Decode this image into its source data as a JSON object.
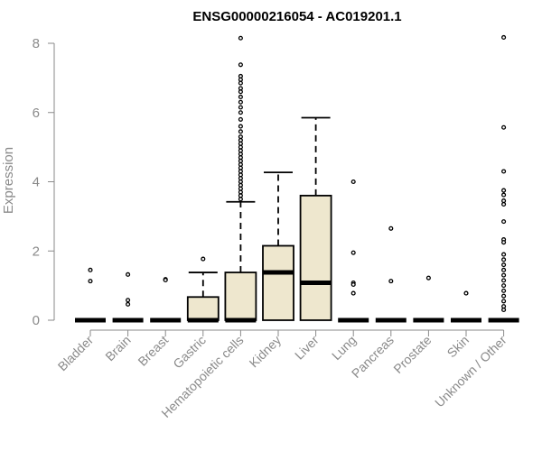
{
  "chart_data": {
    "type": "boxplot",
    "title": "ENSG00000216054 - AC019201.1",
    "xlabel": "",
    "ylabel": "Expression",
    "ylim": [
      0,
      8.2
    ],
    "yticks": [
      0,
      2,
      4,
      6,
      8
    ],
    "box_fill": "#EEE7CE",
    "categories": [
      "Bladder",
      "Brain",
      "Breast",
      "Gastric",
      "Hematopoietic cells",
      "Kidney",
      "Liver",
      "Lung",
      "Pancreas",
      "Prostate",
      "Skin",
      "Unknown / Other"
    ],
    "boxes": [
      {
        "category": "Bladder",
        "whisker_low": 0,
        "q1": 0,
        "median": 0,
        "q3": 0,
        "whisker_high": 0,
        "outliers": [
          1.45,
          1.13
        ]
      },
      {
        "category": "Brain",
        "whisker_low": 0,
        "q1": 0,
        "median": 0,
        "q3": 0,
        "whisker_high": 0,
        "outliers": [
          1.32,
          0.58,
          0.46
        ]
      },
      {
        "category": "Breast",
        "whisker_low": 0,
        "q1": 0,
        "median": 0,
        "q3": 0,
        "whisker_high": 0,
        "outliers": [
          1.18,
          1.16
        ]
      },
      {
        "category": "Gastric",
        "whisker_low": 0,
        "q1": 0,
        "median": 0,
        "q3": 0.67,
        "whisker_high": 1.38,
        "outliers": [
          1.77
        ]
      },
      {
        "category": "Hematopoietic cells",
        "whisker_low": 0,
        "q1": 0,
        "median": 0,
        "q3": 1.38,
        "whisker_high": 3.42,
        "outliers": [
          8.15,
          7.38,
          7.05,
          6.95,
          6.85,
          6.7,
          6.6,
          6.45,
          6.3,
          6.15,
          6.0,
          5.8,
          5.6,
          5.45,
          5.3,
          5.2,
          5.1,
          5.0,
          4.9,
          4.8,
          4.7,
          4.6,
          4.5,
          4.4,
          4.3,
          4.2,
          4.1,
          4.0,
          3.9,
          3.8,
          3.7,
          3.6,
          3.5
        ]
      },
      {
        "category": "Kidney",
        "whisker_low": 0,
        "q1": 0,
        "median": 1.38,
        "q3": 2.15,
        "whisker_high": 4.27,
        "outliers": []
      },
      {
        "category": "Liver",
        "whisker_low": 0,
        "q1": 0,
        "median": 1.08,
        "q3": 3.6,
        "whisker_high": 5.85,
        "outliers": []
      },
      {
        "category": "Lung",
        "whisker_low": 0,
        "q1": 0,
        "median": 0,
        "q3": 0,
        "whisker_high": 0,
        "outliers": [
          4.0,
          1.95,
          1.08,
          1.03,
          0.78
        ]
      },
      {
        "category": "Pancreas",
        "whisker_low": 0,
        "q1": 0,
        "median": 0,
        "q3": 0,
        "whisker_high": 0,
        "outliers": [
          2.65,
          1.13
        ]
      },
      {
        "category": "Prostate",
        "whisker_low": 0,
        "q1": 0,
        "median": 0,
        "q3": 0,
        "whisker_high": 0,
        "outliers": [
          1.22
        ]
      },
      {
        "category": "Skin",
        "whisker_low": 0,
        "q1": 0,
        "median": 0,
        "q3": 0,
        "whisker_high": 0,
        "outliers": [
          0.78
        ]
      },
      {
        "category": "Unknown / Other",
        "whisker_low": 0,
        "q1": 0,
        "median": 0,
        "q3": 0,
        "whisker_high": 0,
        "outliers": [
          8.17,
          5.57,
          4.3,
          3.75,
          3.62,
          3.45,
          3.35,
          2.85,
          2.33,
          2.25,
          1.9,
          1.75,
          1.6,
          1.45,
          1.3,
          1.15,
          1.0,
          0.85,
          0.7,
          0.55,
          0.4,
          0.3
        ]
      }
    ]
  }
}
